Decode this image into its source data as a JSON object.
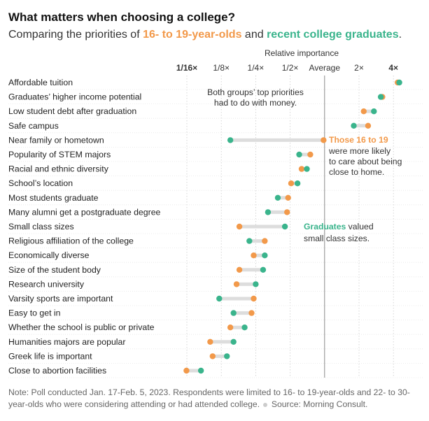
{
  "title": "What matters when choosing a college?",
  "subtitle": {
    "prefix": "Comparing the priorities of ",
    "group_young": "16- to 19-year-olds",
    "connector": " and ",
    "group_grad": "recent college graduates",
    "suffix": "."
  },
  "colors": {
    "young": "#f2994a",
    "grad": "#3ab48c",
    "connector": "#dddddd",
    "grid": "#cccccc",
    "average": "#888888"
  },
  "chart_data": {
    "type": "dumbbell",
    "axis_label": "Relative importance",
    "scale": "log2",
    "xlim": [
      0.0625,
      4.6
    ],
    "ticks": [
      {
        "value": 0.0625,
        "label": "1/16×",
        "bold": true
      },
      {
        "value": 0.125,
        "label": "1/8×",
        "bold": false
      },
      {
        "value": 0.25,
        "label": "1/4×",
        "bold": false
      },
      {
        "value": 0.5,
        "label": "1/2×",
        "bold": false
      },
      {
        "value": 1,
        "label": "Average",
        "bold": false
      },
      {
        "value": 2,
        "label": "2×",
        "bold": false
      },
      {
        "value": 4,
        "label": "4×",
        "bold": true
      }
    ],
    "series": [
      {
        "name": "16- to 19-year-olds",
        "key": "young"
      },
      {
        "name": "recent college graduates",
        "key": "grad"
      }
    ],
    "categories": [
      {
        "label": "Affordable tuition",
        "young": 4.35,
        "grad": 4.5
      },
      {
        "label": "Graduates’ higher income potential",
        "young": 3.2,
        "grad": 3.1
      },
      {
        "label": "Low student debt after graduation",
        "young": 2.2,
        "grad": 2.7
      },
      {
        "label": "Safe campus",
        "young": 2.4,
        "grad": 1.8
      },
      {
        "label": "Near family or hometown",
        "young": 0.98,
        "grad": 0.15
      },
      {
        "label": "Popularity of STEM majors",
        "young": 0.75,
        "grad": 0.6
      },
      {
        "label": "Racial and ethnic diversity",
        "young": 0.63,
        "grad": 0.7
      },
      {
        "label": "School’s location",
        "young": 0.51,
        "grad": 0.58
      },
      {
        "label": "Most students graduate",
        "young": 0.48,
        "grad": 0.39
      },
      {
        "label": "Many alumni get a postgraduate degree",
        "young": 0.47,
        "grad": 0.32
      },
      {
        "label": "Small class sizes",
        "young": 0.18,
        "grad": 0.45
      },
      {
        "label": "Religious affiliation of the college",
        "young": 0.3,
        "grad": 0.22
      },
      {
        "label": "Economically diverse",
        "young": 0.24,
        "grad": 0.3
      },
      {
        "label": "Size of the student body",
        "young": 0.18,
        "grad": 0.29
      },
      {
        "label": "Research university",
        "young": 0.17,
        "grad": 0.25
      },
      {
        "label": "Varsity sports are important",
        "young": 0.24,
        "grad": 0.12
      },
      {
        "label": "Easy to get in",
        "young": 0.23,
        "grad": 0.16
      },
      {
        "label": "Whether the school is public or private",
        "young": 0.15,
        "grad": 0.2
      },
      {
        "label": "Humanities majors are popular",
        "young": 0.1,
        "grad": 0.16
      },
      {
        "label": "Greek life is important",
        "young": 0.105,
        "grad": 0.14
      },
      {
        "label": "Close to abortion facilities",
        "young": 0.062,
        "grad": 0.083
      }
    ],
    "annotations": [
      {
        "id": "money",
        "lines": [
          "Both groups’ top priorities",
          "had to do with money."
        ]
      },
      {
        "id": "near",
        "highlight": "Those 16 to 19",
        "lines": [
          "were more likely",
          "to care about being",
          "close to home."
        ]
      },
      {
        "id": "small",
        "highlight": "Graduates",
        "rest": " valued",
        "lines": [
          "small class sizes."
        ]
      }
    ]
  },
  "note": {
    "text": "Note: Poll conducted Jan. 17-Feb. 5, 2023. Respondents were limited to 16- to 19-year-olds and 22- to 30-year-olds who were considering attending or had attended college.",
    "source": "Source: Morning Consult."
  }
}
